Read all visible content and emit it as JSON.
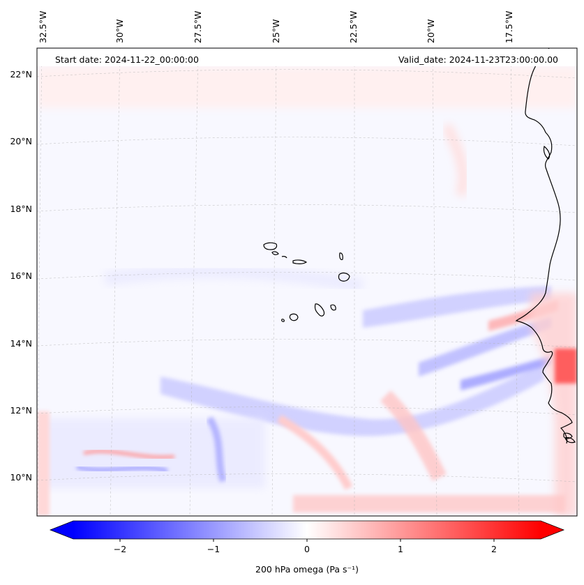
{
  "header": {
    "start_date": "Start date: 2024-11-22_00:00:00",
    "valid_date": "Valid_date: 2024-11-23T23:00:00.00"
  },
  "map": {
    "lon_labels": [
      "32.5°W",
      "30°W",
      "27.5°W",
      "25°W",
      "22.5°W",
      "20°W",
      "17.5°W"
    ],
    "lat_labels": [
      "22°N",
      "20°N",
      "18°N",
      "16°N",
      "14°N",
      "12°N",
      "10°N"
    ],
    "gridlines": "dashed",
    "coastline_color": "#000000"
  },
  "colorbar": {
    "label": "200 hPa omega (Pa s⁻¹)",
    "ticks": [
      "−2",
      "−1",
      "0",
      "1",
      "2"
    ],
    "range": [
      -2.5,
      2.5
    ],
    "low_color": "#0000ff",
    "mid_color": "#ffffff",
    "high_color": "#ff0000",
    "extend": "both"
  }
}
